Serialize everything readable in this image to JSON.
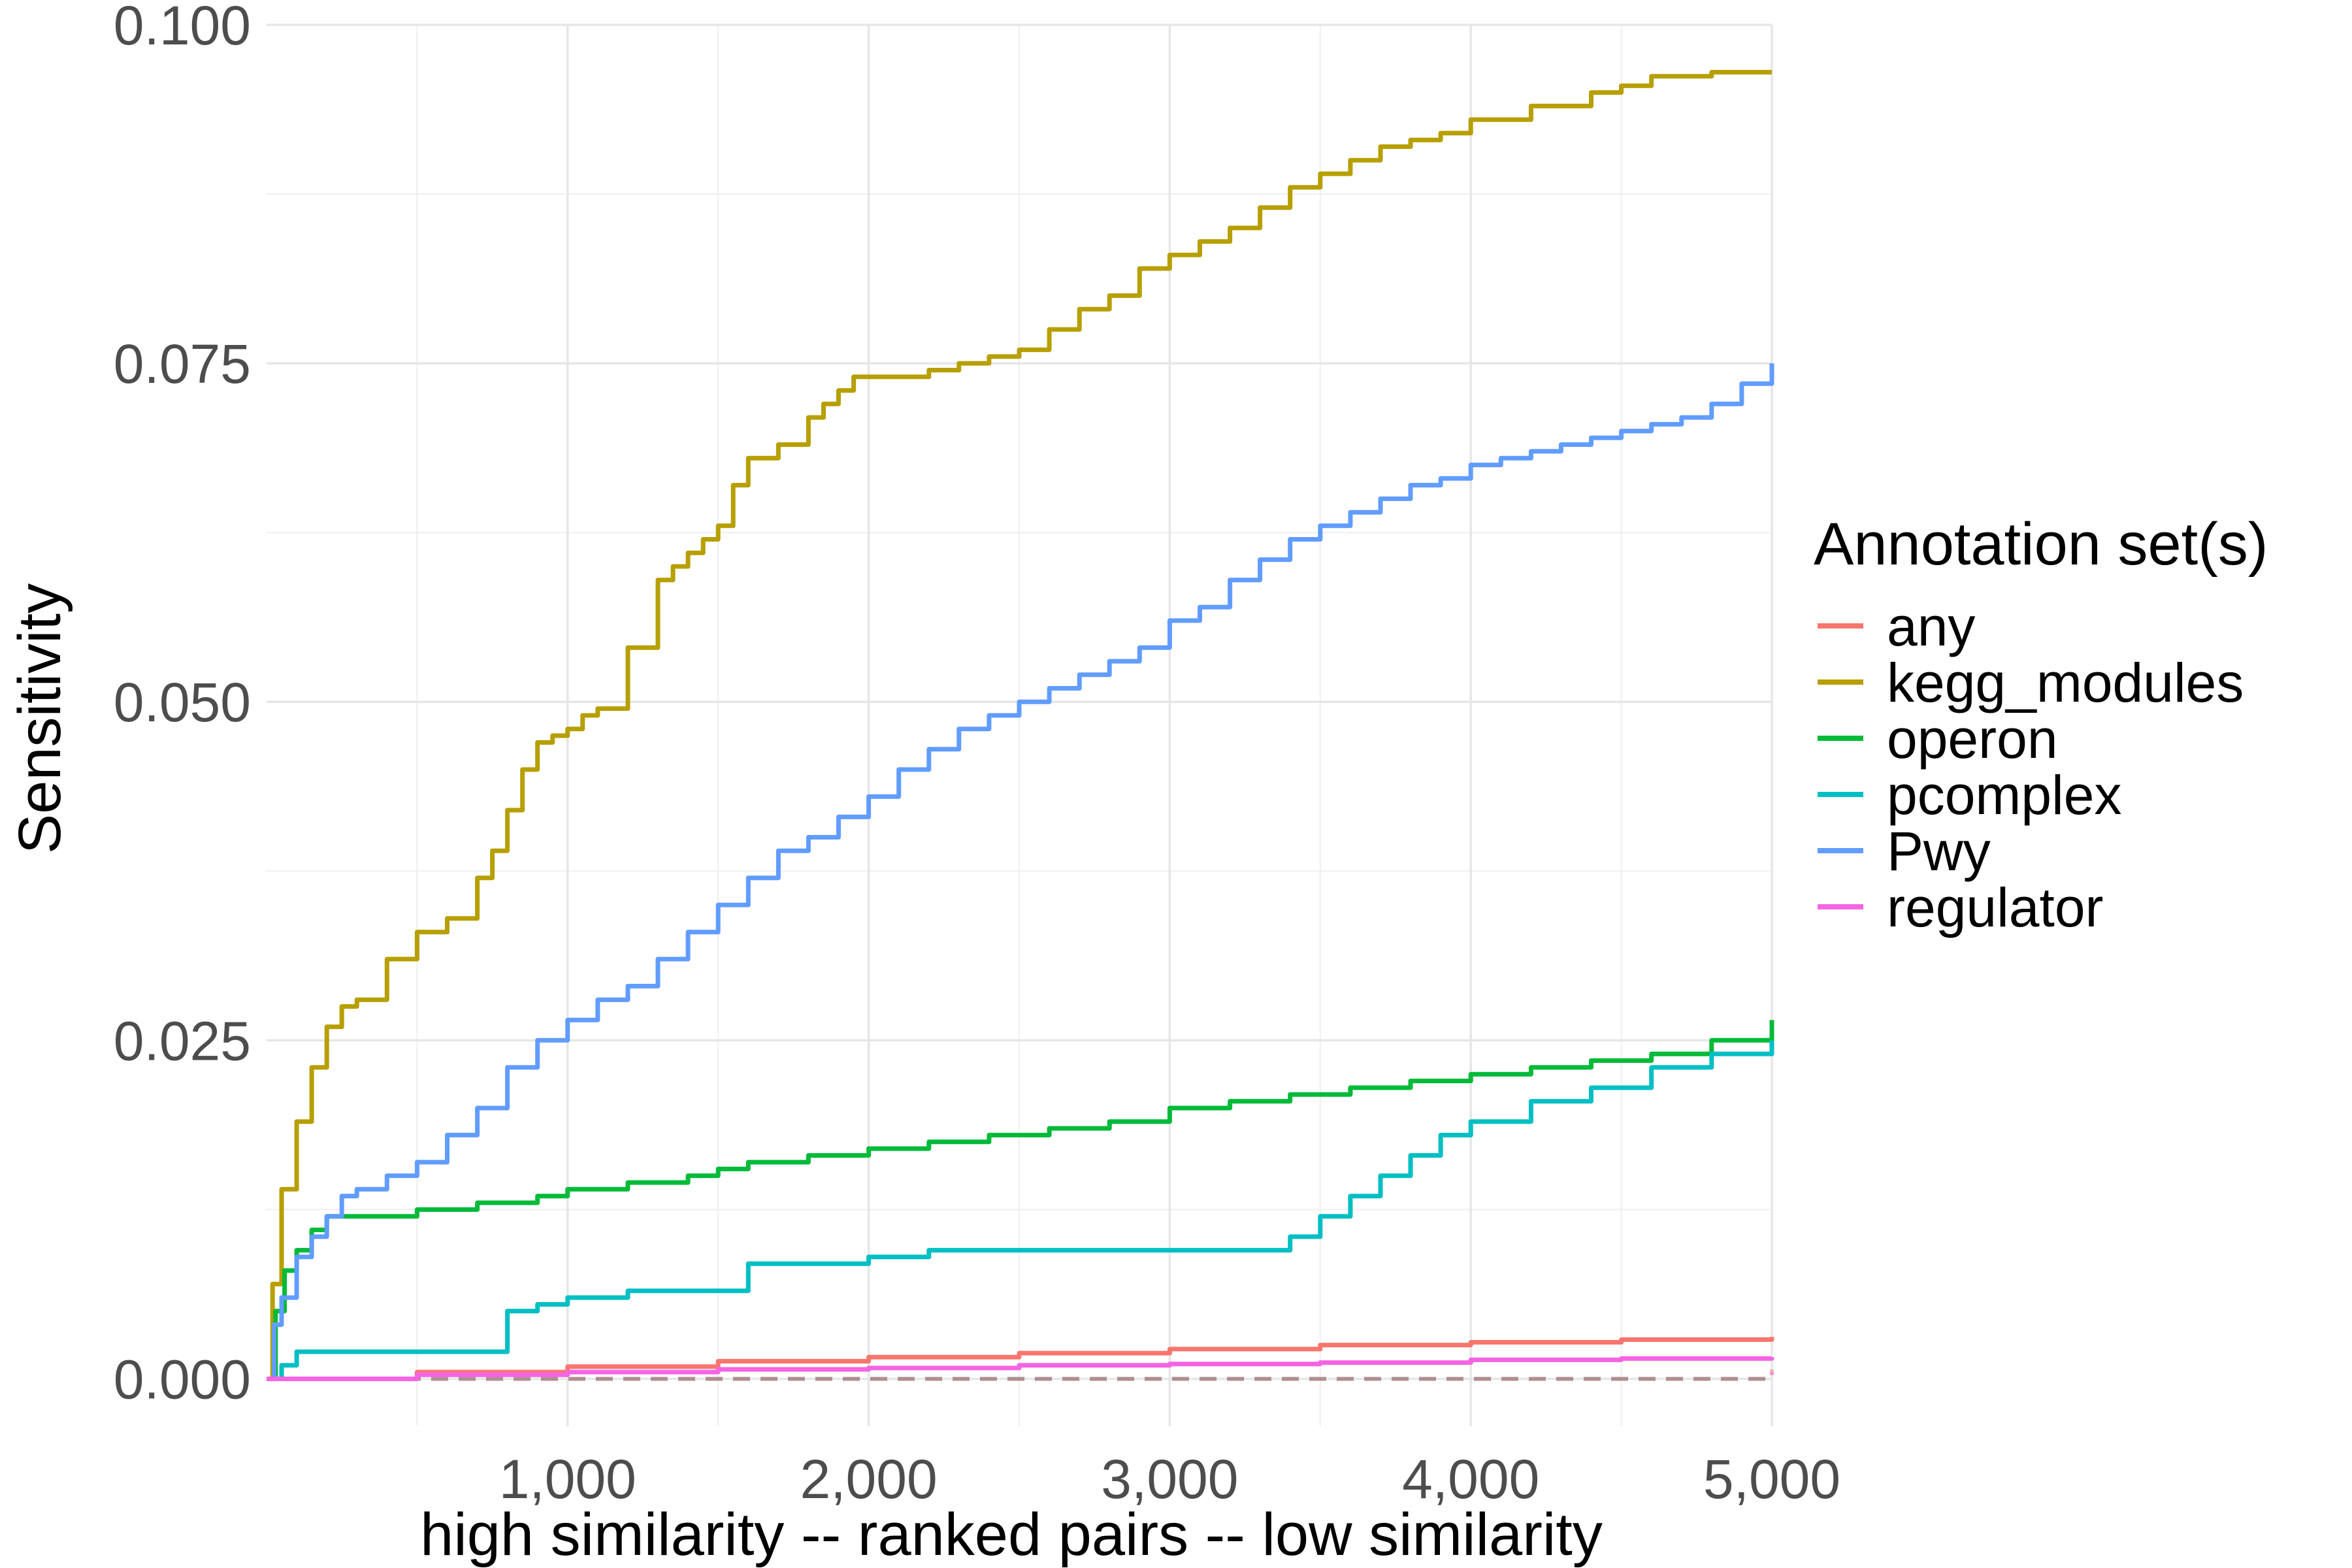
{
  "chart_data": {
    "type": "line",
    "title": "",
    "xlabel": "high similarity -- ranked pairs -- low similarity",
    "ylabel": "Sensitivity",
    "xlim": [
      0,
      5000
    ],
    "ylim": [
      -0.0035,
      0.1
    ],
    "x_ticks": [
      1000,
      2000,
      3000,
      4000,
      5000
    ],
    "x_tick_labels": [
      "1,000",
      "2,000",
      "3,000",
      "4,000",
      "5,000"
    ],
    "y_ticks": [
      0.0,
      0.025,
      0.05,
      0.075,
      0.1
    ],
    "y_tick_labels": [
      "0.000",
      "0.025",
      "0.050",
      "0.075",
      "0.100"
    ],
    "grid": true,
    "legend": {
      "title": "Annotation set(s)",
      "position": "right"
    },
    "series": [
      {
        "name": "any",
        "color": "#F8766D",
        "style": "solid",
        "x": [
          0,
          500,
          1000,
          1500,
          2000,
          2500,
          3000,
          3500,
          4000,
          4500,
          5000
        ],
        "y": [
          0.0,
          0.0005,
          0.0009,
          0.0013,
          0.0016,
          0.0019,
          0.0022,
          0.0025,
          0.0027,
          0.0029,
          0.0031
        ]
      },
      {
        "name": "kegg_modules",
        "color": "#B79F00",
        "style": "solid",
        "x": [
          0,
          20,
          50,
          100,
          150,
          200,
          250,
          300,
          400,
          500,
          600,
          700,
          750,
          800,
          850,
          900,
          950,
          1000,
          1050,
          1100,
          1200,
          1300,
          1350,
          1400,
          1450,
          1500,
          1550,
          1600,
          1700,
          1800,
          1850,
          1900,
          1950,
          2000,
          2100,
          2200,
          2300,
          2400,
          2500,
          2600,
          2700,
          2800,
          2900,
          3000,
          3100,
          3200,
          3300,
          3400,
          3500,
          3600,
          3700,
          3800,
          3900,
          4000,
          4100,
          4200,
          4300,
          4400,
          4500,
          4600,
          4700,
          4800,
          4900,
          5000
        ],
        "y": [
          0.0,
          0.007,
          0.014,
          0.019,
          0.023,
          0.026,
          0.0275,
          0.028,
          0.031,
          0.033,
          0.034,
          0.037,
          0.039,
          0.042,
          0.045,
          0.047,
          0.0475,
          0.048,
          0.049,
          0.0495,
          0.054,
          0.059,
          0.06,
          0.061,
          0.062,
          0.063,
          0.066,
          0.068,
          0.069,
          0.071,
          0.072,
          0.073,
          0.074,
          0.074,
          0.074,
          0.0745,
          0.075,
          0.0755,
          0.076,
          0.0775,
          0.079,
          0.08,
          0.082,
          0.083,
          0.084,
          0.085,
          0.0865,
          0.088,
          0.089,
          0.09,
          0.091,
          0.0915,
          0.092,
          0.093,
          0.093,
          0.094,
          0.094,
          0.095,
          0.0955,
          0.0962,
          0.0962,
          0.0965,
          0.0965,
          0.0965
        ]
      },
      {
        "name": "operon",
        "color": "#00BA38",
        "style": "solid",
        "x": [
          0,
          30,
          60,
          100,
          150,
          200,
          300,
          400,
          500,
          600,
          700,
          800,
          900,
          1000,
          1200,
          1400,
          1500,
          1600,
          1800,
          2000,
          2200,
          2400,
          2600,
          2800,
          3000,
          3200,
          3400,
          3600,
          3800,
          4000,
          4200,
          4400,
          4600,
          4800,
          5000
        ],
        "y": [
          0.0,
          0.005,
          0.008,
          0.0095,
          0.011,
          0.012,
          0.012,
          0.012,
          0.0125,
          0.0125,
          0.013,
          0.013,
          0.0135,
          0.014,
          0.0145,
          0.015,
          0.0155,
          0.016,
          0.0165,
          0.017,
          0.0175,
          0.018,
          0.0185,
          0.019,
          0.02,
          0.0205,
          0.021,
          0.0215,
          0.022,
          0.0225,
          0.023,
          0.0235,
          0.024,
          0.025,
          0.0265
        ]
      },
      {
        "name": "pcomplex",
        "color": "#00BFC4",
        "style": "solid",
        "x": [
          0,
          50,
          100,
          750,
          800,
          900,
          1000,
          1200,
          1400,
          1600,
          1800,
          2000,
          2200,
          2400,
          2600,
          2800,
          3000,
          3200,
          3300,
          3400,
          3500,
          3600,
          3700,
          3800,
          3900,
          4000,
          4200,
          4400,
          4600,
          4800,
          5000
        ],
        "y": [
          0.0,
          0.001,
          0.002,
          0.002,
          0.005,
          0.0055,
          0.006,
          0.0065,
          0.0065,
          0.0085,
          0.0085,
          0.009,
          0.0095,
          0.0095,
          0.0095,
          0.0095,
          0.0095,
          0.0095,
          0.0095,
          0.0105,
          0.012,
          0.0135,
          0.015,
          0.0165,
          0.018,
          0.019,
          0.0205,
          0.0215,
          0.023,
          0.024,
          0.025
        ]
      },
      {
        "name": "Pwy",
        "color": "#619CFF",
        "style": "solid",
        "x": [
          0,
          25,
          50,
          100,
          150,
          200,
          250,
          300,
          400,
          500,
          600,
          700,
          800,
          900,
          1000,
          1100,
          1200,
          1300,
          1400,
          1500,
          1600,
          1700,
          1800,
          1900,
          2000,
          2100,
          2200,
          2300,
          2400,
          2500,
          2600,
          2700,
          2800,
          2900,
          3000,
          3100,
          3200,
          3300,
          3400,
          3500,
          3600,
          3700,
          3800,
          3900,
          4000,
          4100,
          4200,
          4300,
          4400,
          4500,
          4600,
          4700,
          4800,
          4900,
          5000
        ],
        "y": [
          0.0,
          0.004,
          0.006,
          0.009,
          0.0105,
          0.012,
          0.0135,
          0.014,
          0.015,
          0.016,
          0.018,
          0.02,
          0.023,
          0.025,
          0.0265,
          0.028,
          0.029,
          0.031,
          0.033,
          0.035,
          0.037,
          0.039,
          0.04,
          0.0415,
          0.043,
          0.045,
          0.0465,
          0.048,
          0.049,
          0.05,
          0.051,
          0.052,
          0.053,
          0.054,
          0.056,
          0.057,
          0.059,
          0.0605,
          0.062,
          0.063,
          0.064,
          0.065,
          0.066,
          0.0665,
          0.0675,
          0.068,
          0.0685,
          0.069,
          0.0695,
          0.07,
          0.0705,
          0.071,
          0.072,
          0.0735,
          0.075
        ]
      },
      {
        "name": "regulator",
        "color": "#F564E3",
        "style": "solid",
        "x": [
          0,
          500,
          1000,
          1500,
          2000,
          2500,
          3000,
          3500,
          4000,
          4500,
          5000
        ],
        "y": [
          0.0,
          0.0003,
          0.0005,
          0.0007,
          0.0008,
          0.001,
          0.0011,
          0.0012,
          0.0014,
          0.0015,
          0.0016
        ]
      },
      {
        "name": "",
        "color": "#F8766D",
        "style": "dashed",
        "opacity": 0.45,
        "x": [
          0,
          5000
        ],
        "y": [
          0.0,
          0.0007
        ]
      },
      {
        "name": "",
        "color": "#B79F00",
        "style": "dashed",
        "opacity": 0.45,
        "x": [
          0,
          5000
        ],
        "y": [
          0.0,
          0.0003
        ]
      },
      {
        "name": "",
        "color": "#00BA38",
        "style": "dashed",
        "opacity": 0.45,
        "x": [
          0,
          5000
        ],
        "y": [
          0.0,
          -0.0001
        ]
      },
      {
        "name": "",
        "color": "#F564E3",
        "style": "dashed",
        "opacity": 0.45,
        "x": [
          0,
          5000
        ],
        "y": [
          0.0,
          0.0005
        ]
      }
    ]
  }
}
